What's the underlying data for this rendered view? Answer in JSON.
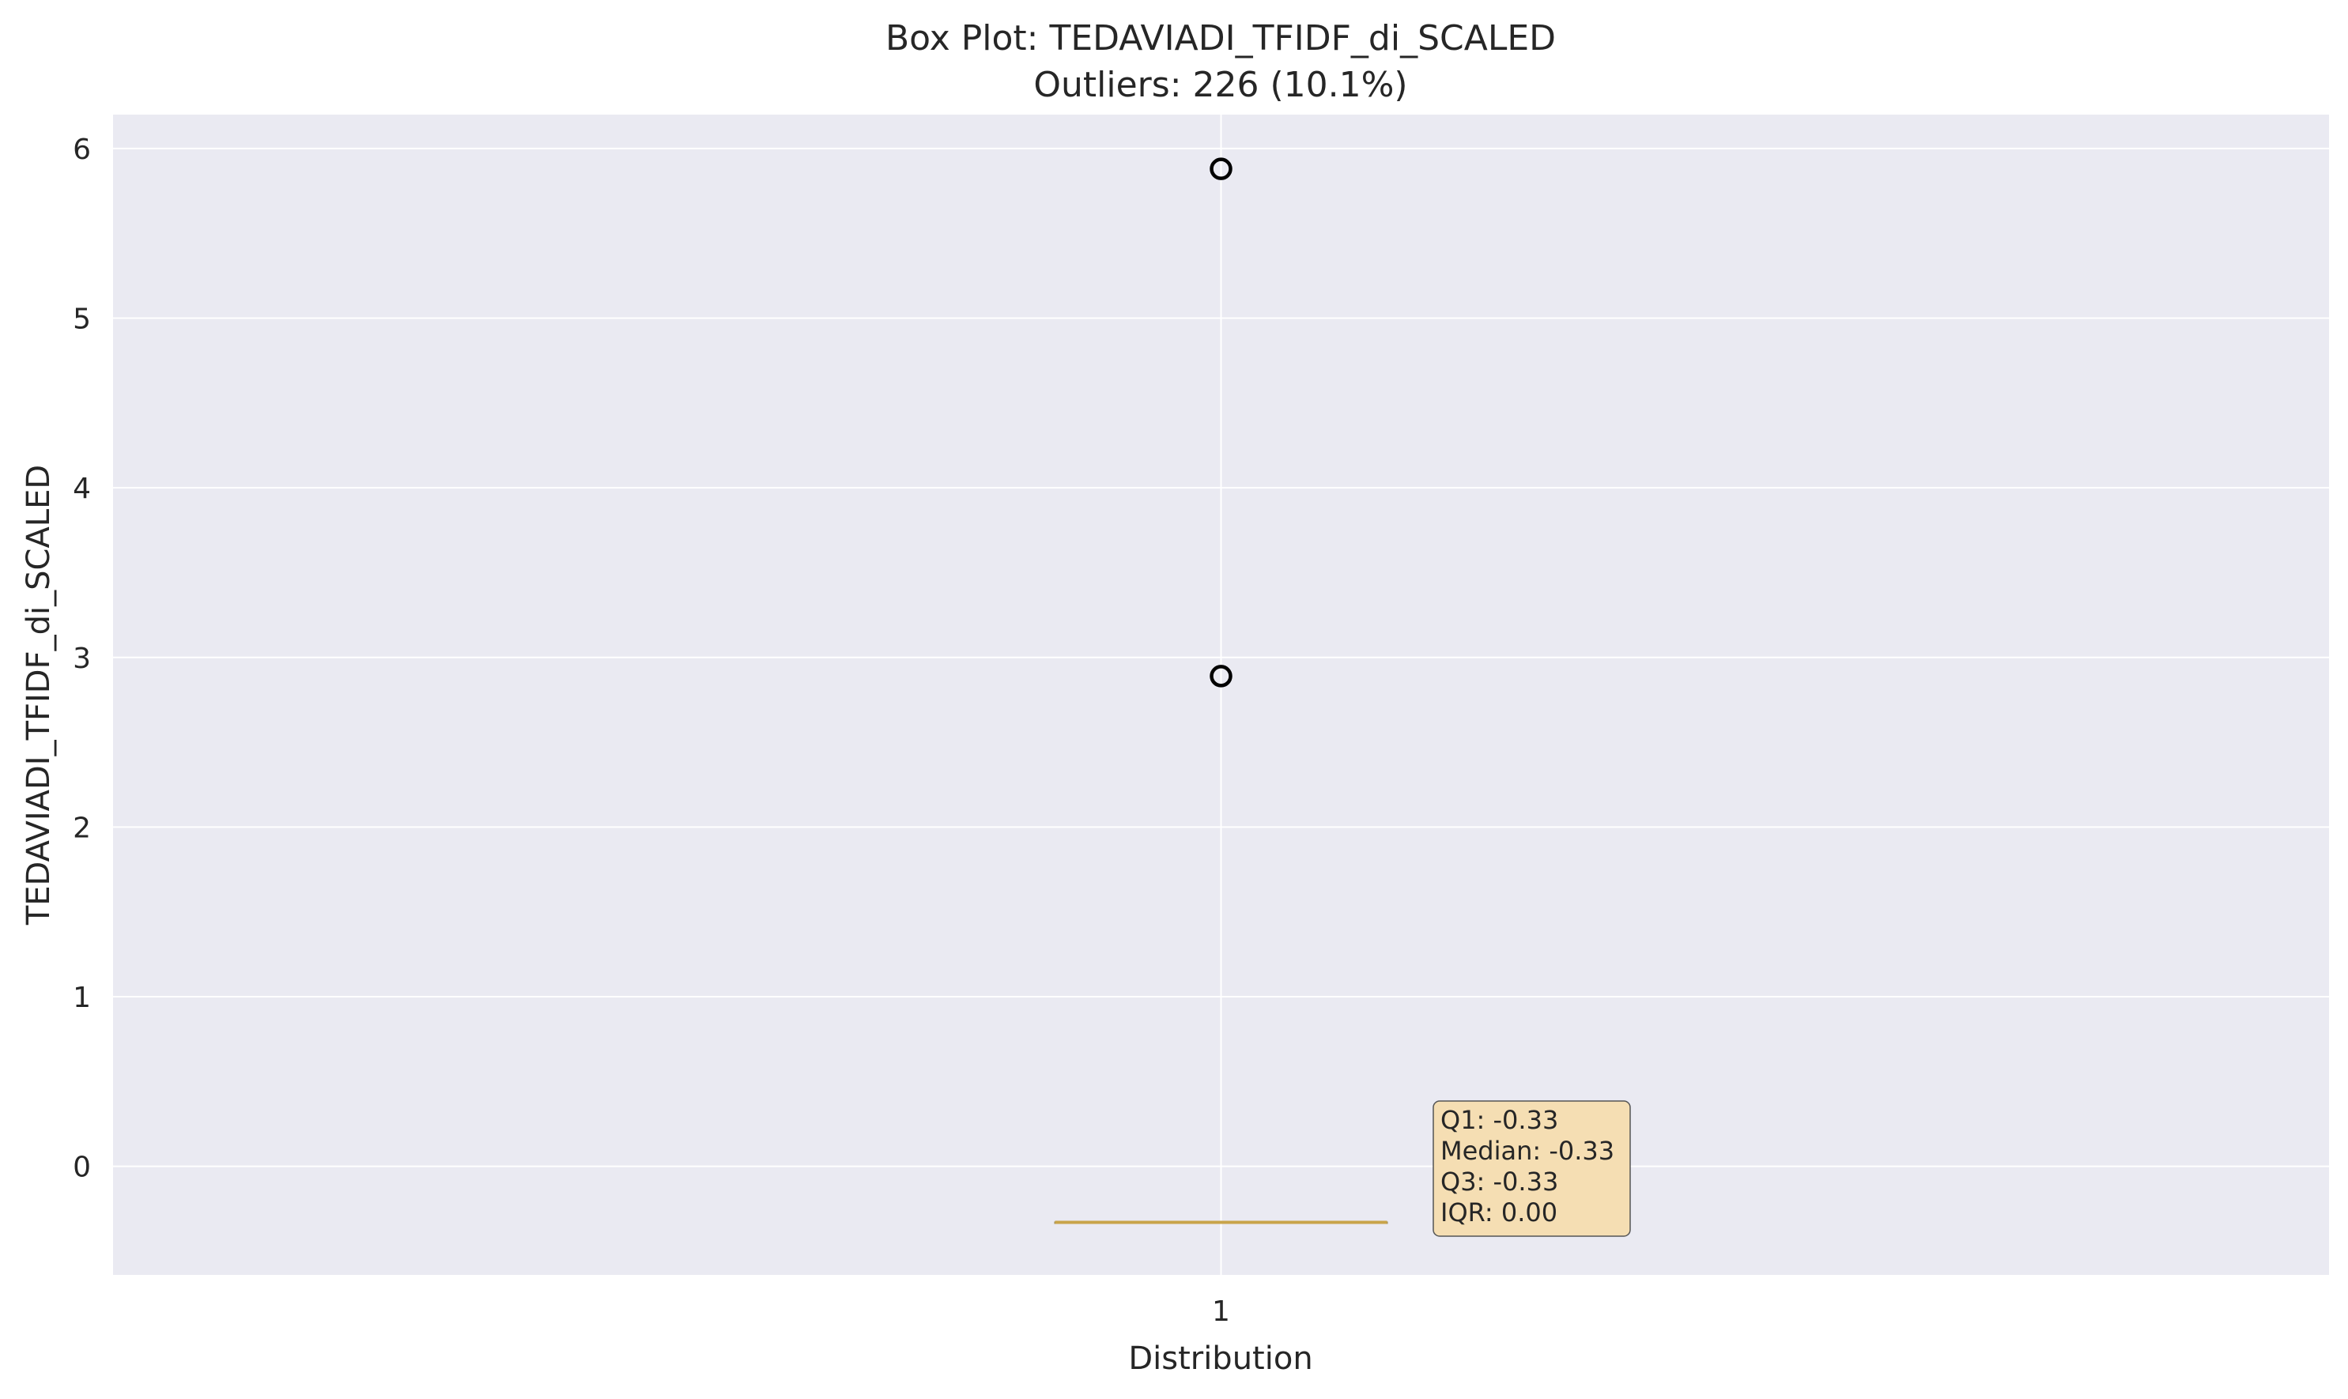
{
  "chart_data": {
    "type": "box",
    "title": "Box Plot: TEDAVIADI_TFIDF_di_SCALED",
    "subtitle": "Outliers: 226 (10.1%)",
    "xlabel": "Distribution",
    "ylabel": "TEDAVIADI_TFIDF_di_SCALED",
    "categories": [
      "1"
    ],
    "ylim": [
      -0.64,
      6.2
    ],
    "yticks": [
      0,
      1,
      2,
      3,
      4,
      5,
      6
    ],
    "grid": true,
    "boxes": [
      {
        "category": "1",
        "q1": -0.33,
        "median": -0.33,
        "q3": -0.33,
        "whisker_low": -0.33,
        "whisker_high": -0.33,
        "outliers": [
          2.89,
          5.88
        ]
      }
    ],
    "stats_box": {
      "lines": [
        "Q1: -0.33",
        "Median: -0.33",
        "Q3: -0.33",
        "IQR: 0.00"
      ]
    },
    "colors": {
      "plot_background": "#eaeaf2",
      "grid": "#ffffff",
      "median_line": "#c8a44a",
      "outlier_marker": "#000000",
      "stats_box_fill": "#f5deb3",
      "stats_box_border": "#555555"
    }
  }
}
